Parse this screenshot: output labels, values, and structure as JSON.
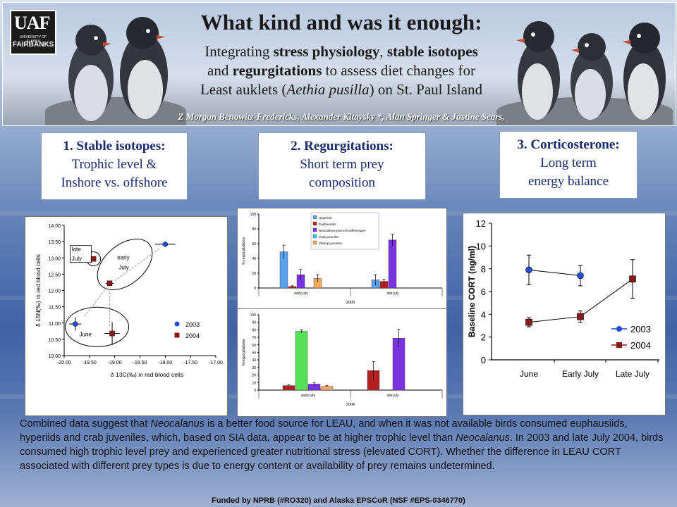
{
  "header": {
    "logo_main": "UAF",
    "logo_univ": "UNIVERSITY OF ALASKA",
    "logo_campus": "FAIRBANKS",
    "title": "What kind and was it enough:",
    "subtitle_line1_a": "Integrating ",
    "subtitle_line1_b": "stress physiology",
    "subtitle_line1_c": ", ",
    "subtitle_line1_d": "stable isotopes",
    "subtitle_line2_a": "and ",
    "subtitle_line2_b": "regurgitations",
    "subtitle_line2_c": " to assess diet changes for",
    "subtitle_line3_a": "Least auklets (",
    "subtitle_line3_b": "Aethia pusilla",
    "subtitle_line3_c": ") on St. Paul Island",
    "authors": "Z Morgan Benowitz-Fredericks, Alexander Kitaysky *, Alan Springer & Justine Sears,"
  },
  "sections": [
    {
      "heading": "1. Stable isotopes:",
      "line1": "Trophic level &",
      "line2": "Inshore vs. offshore"
    },
    {
      "heading": "2. Regurgitations:",
      "line1": "Short term prey",
      "line2": "composition"
    },
    {
      "heading": "3. Corticosterone:",
      "line1": "Long term",
      "line2": "energy balance"
    }
  ],
  "chart_data": [
    {
      "type": "scatter",
      "xlabel": "δ 13C(‰) in red blood cells",
      "ylabel": "δ 15N(‰) in red blood cells",
      "xlim": [
        -20.0,
        -17.0
      ],
      "ylim": [
        10.0,
        14.0
      ],
      "x_ticks": [
        "-20.00",
        "-19.50",
        "-19.00",
        "-18.50",
        "-18.00",
        "-17.50",
        "-17.00"
      ],
      "y_ticks": [
        "10.00",
        "10.50",
        "11.00",
        "11.50",
        "12.00",
        "12.50",
        "13.00",
        "13.50",
        "14.00"
      ],
      "legend": "right",
      "annotations": [
        "late July",
        "early July",
        "June"
      ],
      "series": [
        {
          "name": "2003",
          "color": "#1f4fd8",
          "points": [
            {
              "x": -19.78,
              "y": 10.97,
              "xerr": 0.12,
              "yerr": 0.2
            },
            {
              "x": -18.0,
              "y": 13.42,
              "xerr": 0.2,
              "yerr": 0.05
            }
          ]
        },
        {
          "name": "2004",
          "color": "#8b1a1a",
          "points": [
            {
              "x": -19.05,
              "y": 10.68,
              "xerr": 0.15,
              "yerr": 0.35
            },
            {
              "x": -19.1,
              "y": 12.22,
              "xerr": 0.08,
              "yerr": 0.05
            },
            {
              "x": -19.42,
              "y": 12.97,
              "xerr": 0.03,
              "yerr": 0.04
            }
          ]
        }
      ]
    },
    {
      "type": "bar",
      "year": "2003",
      "ylabel": "% regurgitations",
      "ylim": [
        0,
        100
      ],
      "y_ticks": [
        "0",
        "20",
        "40",
        "60",
        "80",
        "100"
      ],
      "categories": [
        "early july",
        "late july"
      ],
      "legend": "top-right",
      "series": [
        {
          "name": "Hyperiids",
          "color": "#5aa0f0",
          "values": [
            49,
            11
          ],
          "err": [
            9,
            7
          ]
        },
        {
          "name": "Euphausiids",
          "color": "#b22020",
          "values": [
            2,
            9
          ],
          "err": [
            1,
            3
          ]
        },
        {
          "name": "Neocalanus plumchrus/flemingeri",
          "color": "#7a33e0",
          "values": [
            18,
            65
          ],
          "err": [
            7,
            8
          ]
        },
        {
          "name": "Crab juveniles",
          "color": "#36c8ef",
          "values": [
            0,
            0
          ],
          "err": [
            0,
            0
          ]
        },
        {
          "name": "Shrimp juveniles",
          "color": "#f0a860",
          "values": [
            13,
            0
          ],
          "err": [
            5,
            0
          ]
        }
      ]
    },
    {
      "type": "bar",
      "year": "2004",
      "ylabel": "%regurgitations",
      "ylim": [
        0,
        100
      ],
      "y_ticks": [
        "0",
        "10",
        "20",
        "30",
        "40",
        "50",
        "60",
        "70",
        "80",
        "90",
        "100"
      ],
      "categories": [
        "early july",
        "late july"
      ],
      "series": [
        {
          "name": "Euphausiids",
          "color": "#b22020",
          "values": [
            6,
            26
          ],
          "err": [
            1,
            12
          ]
        },
        {
          "name": "Crab juveniles",
          "color": "#55e055",
          "values": [
            78,
            0
          ],
          "err": [
            2,
            0
          ]
        },
        {
          "name": "Neocalanus plumchrus/flemingeri",
          "color": "#7a33e0",
          "values": [
            8,
            69
          ],
          "err": [
            2,
            12
          ]
        },
        {
          "name": "Shrimp juveniles",
          "color": "#f0a860",
          "values": [
            5,
            0
          ],
          "err": [
            1,
            0
          ]
        }
      ]
    },
    {
      "type": "line",
      "ylabel": "Baseline CORT (ng/ml)",
      "ylim": [
        0,
        12
      ],
      "y_ticks": [
        "0",
        "2",
        "4",
        "6",
        "8",
        "10",
        "12"
      ],
      "categories": [
        "June",
        "Early July",
        "Late July"
      ],
      "legend": "bottom-right",
      "series": [
        {
          "name": "2003",
          "color": "#1f4fd8",
          "values": [
            7.9,
            7.4,
            null
          ],
          "err": [
            1.3,
            0.9,
            null
          ]
        },
        {
          "name": "2004",
          "color": "#8b1a1a",
          "values": [
            3.3,
            3.8,
            7.1
          ],
          "err": [
            0.4,
            0.5,
            1.7
          ]
        }
      ]
    }
  ],
  "summary": {
    "p1": "Combined data suggest that ",
    "p1_i": "Neocalanus",
    "p2": " is a better food source for LEAU, and when it was not available birds consumed euphausiids, hyperiids and crab juveniles, which, based on SIA data, appear to be at higher trophic level than ",
    "p2_i": "Neocalanus",
    "p3": ". In 2003 and late July 2004, birds consumed high trophic level prey and experienced greater nutritional stress (elevated CORT). Whether the difference in LEAU CORT associated with different prey types is due to energy content or availability of prey remains undetermined."
  },
  "funding": "Funded by NPRB (#RO320) and Alaska EPSCoR (NSF #EPS-0346770)"
}
